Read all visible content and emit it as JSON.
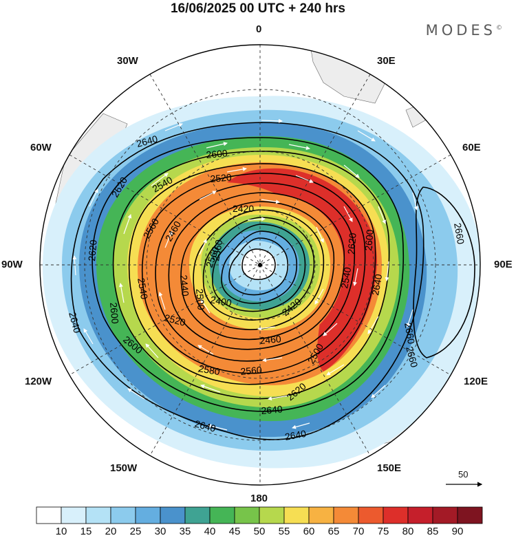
{
  "title": "16/06/2025  00 UTC  + 240 hrs",
  "logo": {
    "text": "MODES",
    "mark": "©"
  },
  "longitude_labels": {
    "lon_0": "0",
    "lon_30e": "30E",
    "lon_60e": "60E",
    "lon_90e": "90E",
    "lon_120e": "120E",
    "lon_150e": "150E",
    "lon_180": "180",
    "lon_150w": "150W",
    "lon_120w": "120W",
    "lon_90w": "90W",
    "lon_60w": "60W",
    "lon_30w": "30W"
  },
  "contour_labels": {
    "c2640a": "2640",
    "c2600a": "2600",
    "c2620a": "2620",
    "c2540a": "2540",
    "c2520a": "2520",
    "c2560a": "2560",
    "c2460a": "2460",
    "c2420a": "2420",
    "c2620b": "2620",
    "c2560b": "2560",
    "c2540b": "2540",
    "c2440": "2440",
    "c2500": "2500",
    "c2600b": "2600",
    "c2640b": "2640",
    "c2400": "2400",
    "c2520b": "2520",
    "c2600c": "2600",
    "c2620c": "2620",
    "c2660a": "2660",
    "c2420b": "2420",
    "c2540c": "2540",
    "c2640c": "2640",
    "c2660b": "2660",
    "c2460b": "2460",
    "c2560c": "2560",
    "c2580": "2580",
    "c2500b": "2500",
    "c2620d": "2620",
    "c2640d": "2640",
    "c2640e": "2640",
    "c2640f": "2640",
    "c2660c": "2660",
    "c2600d": "2600",
    "c2360": "2360"
  },
  "vector_reference": {
    "value": "50"
  },
  "colorbar": {
    "tick_labels": [
      "10",
      "15",
      "20",
      "25",
      "30",
      "35",
      "40",
      "45",
      "50",
      "55",
      "60",
      "65",
      "70",
      "75",
      "80",
      "85",
      "90"
    ],
    "colors": [
      "#ffffff",
      "#d8f0fb",
      "#b4e2f6",
      "#8ccbed",
      "#64aee0",
      "#4a92cc",
      "#3fa393",
      "#45b556",
      "#77c44a",
      "#b6d84d",
      "#f6de53",
      "#f7b242",
      "#f48a37",
      "#ec5a2e",
      "#dd2f2a",
      "#c51f2b",
      "#a31a26",
      "#7e1420"
    ]
  },
  "colors": {
    "land": "#ededed",
    "contour": "#000000",
    "grid": "#333333",
    "vector": "#ffffff"
  }
}
